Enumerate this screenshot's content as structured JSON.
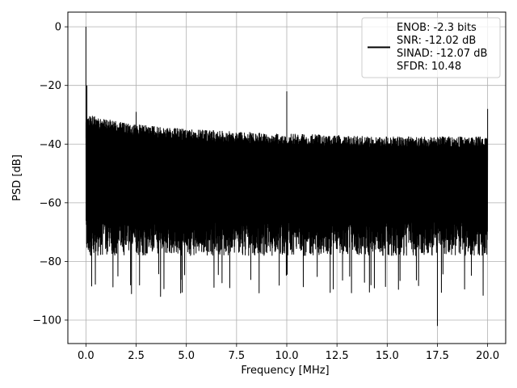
{
  "chart_data": {
    "type": "line",
    "title": "",
    "xlabel": "Frequency [MHz]",
    "ylabel": "PSD [dB]",
    "xlim": [
      -0.9,
      20.9
    ],
    "ylim": [
      -108,
      5
    ],
    "grid": true,
    "legend_placement": "top-right",
    "x_ticks": [
      0.0,
      2.5,
      5.0,
      7.5,
      10.0,
      12.5,
      15.0,
      17.5,
      20.0
    ],
    "x_tick_labels": [
      "0.0",
      "2.5",
      "5.0",
      "7.5",
      "10.0",
      "12.5",
      "15.0",
      "17.5",
      "20.0"
    ],
    "y_ticks": [
      0,
      -20,
      -40,
      -60,
      -80,
      -100
    ],
    "y_tick_labels": [
      "0",
      "−20",
      "−40",
      "−60",
      "−80",
      "−100"
    ],
    "legend_lines": [
      "ENOB: -2.3 bits",
      "SNR: -12.02 dB",
      "SINAD: -12.07 dB",
      "SFDR: 10.48"
    ],
    "series": [
      {
        "color": "#000000",
        "x_range": [
          0,
          20
        ],
        "noise_band": {
          "upper": [
            [
              0.05,
              -30
            ],
            [
              2,
              -33
            ],
            [
              5,
              -35
            ],
            [
              10,
              -36.5
            ],
            [
              15,
              -37.5
            ],
            [
              20,
              -37.5
            ]
          ],
          "lower": [
            [
              0.05,
              -72
            ],
            [
              5,
              -72
            ],
            [
              10,
              -72
            ],
            [
              15,
              -72
            ],
            [
              20,
              -72
            ]
          ],
          "deep_min": -92
        },
        "spikes": [
          {
            "x": 0.0,
            "y": 0
          },
          {
            "x": 0.05,
            "y": -20
          },
          {
            "x": 2.5,
            "y": -29
          },
          {
            "x": 10.0,
            "y": -22
          },
          {
            "x": 20.0,
            "y": -28
          },
          {
            "x": 17.5,
            "y": -102
          }
        ]
      }
    ]
  }
}
